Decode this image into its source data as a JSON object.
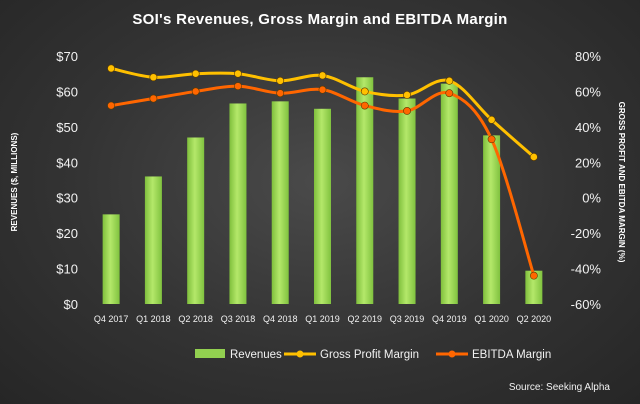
{
  "chart_data": {
    "type": "bar",
    "title": "SOI's Revenues, Gross Margin and EBITDA Margin",
    "ylabel": "REVENUES ($, MILLIONS)",
    "y2label": "GROSS PROFIT AND EBITDA MARGIN (%)",
    "categories": [
      "Q4 2017",
      "Q1 2018",
      "Q2 2018",
      "Q3 2018",
      "Q4 2018",
      "Q1 2019",
      "Q2 2019",
      "Q3 2019",
      "Q4 2019",
      "Q1 2020",
      "Q2 2020"
    ],
    "ylim": [
      0,
      70
    ],
    "yticks": [
      "$0",
      "$10",
      "$20",
      "$30",
      "$40",
      "$50",
      "$60",
      "$70"
    ],
    "y2lim": [
      -60,
      80
    ],
    "y2ticks": [
      "-60%",
      "-40%",
      "-20%",
      "0%",
      "20%",
      "40%",
      "60%",
      "80%"
    ],
    "series": [
      {
        "name": "Revenues",
        "type": "bar",
        "axis": "left",
        "color": "#92d050",
        "values": [
          25.3,
          36.0,
          47.0,
          56.6,
          57.2,
          55.1,
          64.0,
          58.0,
          62.2,
          47.6,
          9.4
        ]
      },
      {
        "name": "Gross Profit Margin",
        "type": "line",
        "axis": "right",
        "color": "#ffc000",
        "values": [
          73,
          68,
          70,
          70,
          66,
          69,
          60,
          58,
          66,
          44,
          23
        ]
      },
      {
        "name": "EBITDA Margin",
        "type": "line",
        "axis": "right",
        "color": "#ff6600",
        "values": [
          52,
          56,
          60,
          63,
          59,
          61,
          52,
          49,
          59,
          33,
          -44
        ]
      }
    ],
    "legend": "bottom",
    "grid": false
  },
  "source": "Source: Seeking Alpha"
}
